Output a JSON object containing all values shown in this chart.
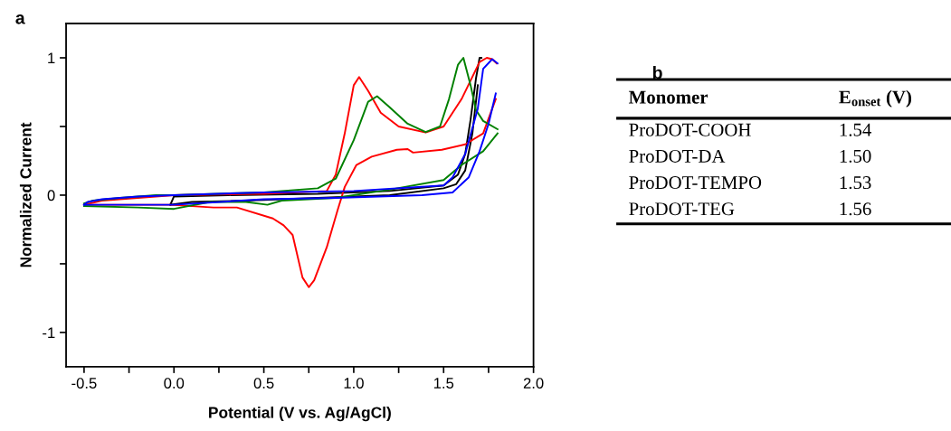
{
  "chart_data": [
    {
      "type": "line",
      "xlabel": "Potential (V vs. Ag/AgCl)",
      "ylabel": "Normalized Current",
      "annotations": [
        "a"
      ],
      "xlim": [
        -0.6,
        2.0
      ],
      "ylim": [
        -1.25,
        1.25
      ],
      "xticks": [
        -0.5,
        {
          "value": -0.25,
          "label": null
        },
        {
          "value": 0,
          "label": "0.0"
        },
        {
          "value": 0.25,
          "label": null
        },
        0.5,
        {
          "value": 0.75,
          "label": null
        },
        {
          "value": 1,
          "label": "1.0"
        },
        {
          "value": 1.25,
          "label": null
        },
        1.5,
        {
          "value": 1.75,
          "label": null
        },
        {
          "value": 2,
          "label": "2.0"
        }
      ],
      "yticks": [
        -1,
        {
          "value": -0.5,
          "label": null
        },
        0,
        {
          "value": 0.5,
          "label": null
        },
        1
      ],
      "grid": false,
      "legend": false,
      "line_style": "solid",
      "marker": "none",
      "series": [
        {
          "color": "#000000",
          "x": [
            -0.02,
            0.0,
            0.3,
            0.8,
            1.2,
            1.5,
            1.58,
            1.62,
            1.65,
            1.68,
            1.7,
            1.71
          ],
          "values": [
            -0.07,
            -0.01,
            0.0,
            0.01,
            0.03,
            0.07,
            0.15,
            0.3,
            0.55,
            0.85,
            1.0,
            1.0
          ]
        },
        {
          "color": "#000000",
          "x": [
            1.69,
            1.66,
            1.62,
            1.57,
            1.5,
            1.2,
            0.8,
            0.4,
            0.1,
            -0.02
          ],
          "values": [
            0.8,
            0.45,
            0.18,
            0.08,
            0.05,
            0.0,
            -0.02,
            -0.04,
            -0.05,
            -0.07
          ]
        },
        {
          "color": "#ff0000",
          "x": [
            -0.5,
            -0.4,
            -0.2,
            0.0,
            0.5,
            0.85,
            0.9,
            0.95,
            1.0,
            1.03,
            1.08,
            1.15,
            1.25,
            1.4,
            1.5,
            1.6,
            1.7,
            1.74,
            1.77,
            1.795
          ],
          "values": [
            -0.07,
            -0.04,
            -0.02,
            0.0,
            0.01,
            0.03,
            0.15,
            0.45,
            0.8,
            0.86,
            0.76,
            0.6,
            0.5,
            0.456,
            0.5,
            0.7,
            0.97,
            1.0,
            0.99,
            0.96
          ]
        },
        {
          "color": "#ff0000",
          "x": [
            1.79,
            1.72,
            1.62,
            1.49,
            1.33,
            1.3,
            1.24,
            1.1,
            1.015,
            0.95,
            0.91,
            0.85,
            0.78,
            0.75,
            0.715,
            0.66,
            0.61,
            0.55,
            0.35,
            0.22,
            -0.02,
            -0.49
          ],
          "values": [
            0.7,
            0.45,
            0.37,
            0.33,
            0.31,
            0.335,
            0.33,
            0.28,
            0.22,
            0.06,
            -0.11,
            -0.38,
            -0.62,
            -0.67,
            -0.6,
            -0.29,
            -0.22,
            -0.17,
            -0.09,
            -0.09,
            -0.07,
            -0.07
          ]
        },
        {
          "color": "#008000",
          "x": [
            -0.5,
            -0.45,
            -0.3,
            -0.1,
            0.0,
            0.5,
            0.8,
            0.9,
            1.0,
            1.08,
            1.13,
            1.2,
            1.3,
            1.4,
            1.48,
            1.53,
            1.58,
            1.61,
            1.65,
            1.68,
            1.72,
            1.8
          ],
          "values": [
            -0.06,
            -0.04,
            -0.02,
            0.0,
            0.0,
            0.02,
            0.05,
            0.12,
            0.4,
            0.68,
            0.72,
            0.64,
            0.52,
            0.46,
            0.5,
            0.7,
            0.95,
            1.0,
            0.8,
            0.62,
            0.54,
            0.48
          ]
        },
        {
          "color": "#008000",
          "x": [
            1.8,
            1.72,
            1.6,
            1.5,
            1.2,
            0.9,
            0.6,
            0.52,
            0.4,
            0.2,
            0.0,
            -0.2,
            -0.5
          ],
          "values": [
            0.45,
            0.32,
            0.22,
            0.11,
            0.04,
            -0.02,
            -0.04,
            -0.07,
            -0.05,
            -0.05,
            -0.1,
            -0.09,
            -0.08
          ]
        },
        {
          "color": "#0000ff",
          "x": [
            -0.5,
            -0.48,
            -0.4,
            -0.2,
            0.0,
            0.5,
            1.0,
            1.5,
            1.55,
            1.62,
            1.69,
            1.72,
            1.77,
            1.8
          ],
          "values": [
            -0.07,
            -0.05,
            -0.03,
            -0.01,
            0.0,
            0.02,
            0.03,
            0.07,
            0.13,
            0.3,
            0.63,
            0.92,
            0.99,
            0.96
          ]
        },
        {
          "color": "#0000ff",
          "x": [
            1.79,
            1.75,
            1.7,
            1.64,
            1.55,
            1.38,
            0.9,
            0.5,
            0.0,
            -0.5
          ],
          "values": [
            0.74,
            0.52,
            0.32,
            0.13,
            0.02,
            0.0,
            -0.02,
            -0.03,
            -0.07,
            -0.07
          ]
        }
      ]
    },
    {
      "type": "other",
      "annotations": [
        "b",
        "Monomer",
        "E$_{onset}$ (V)",
        "ProDOT-COOH",
        "1.54",
        "ProDOT-DA",
        "1.50",
        "ProDOT-TEMPO",
        "1.53",
        "ProDOT-TEG",
        "1.56"
      ]
    }
  ]
}
